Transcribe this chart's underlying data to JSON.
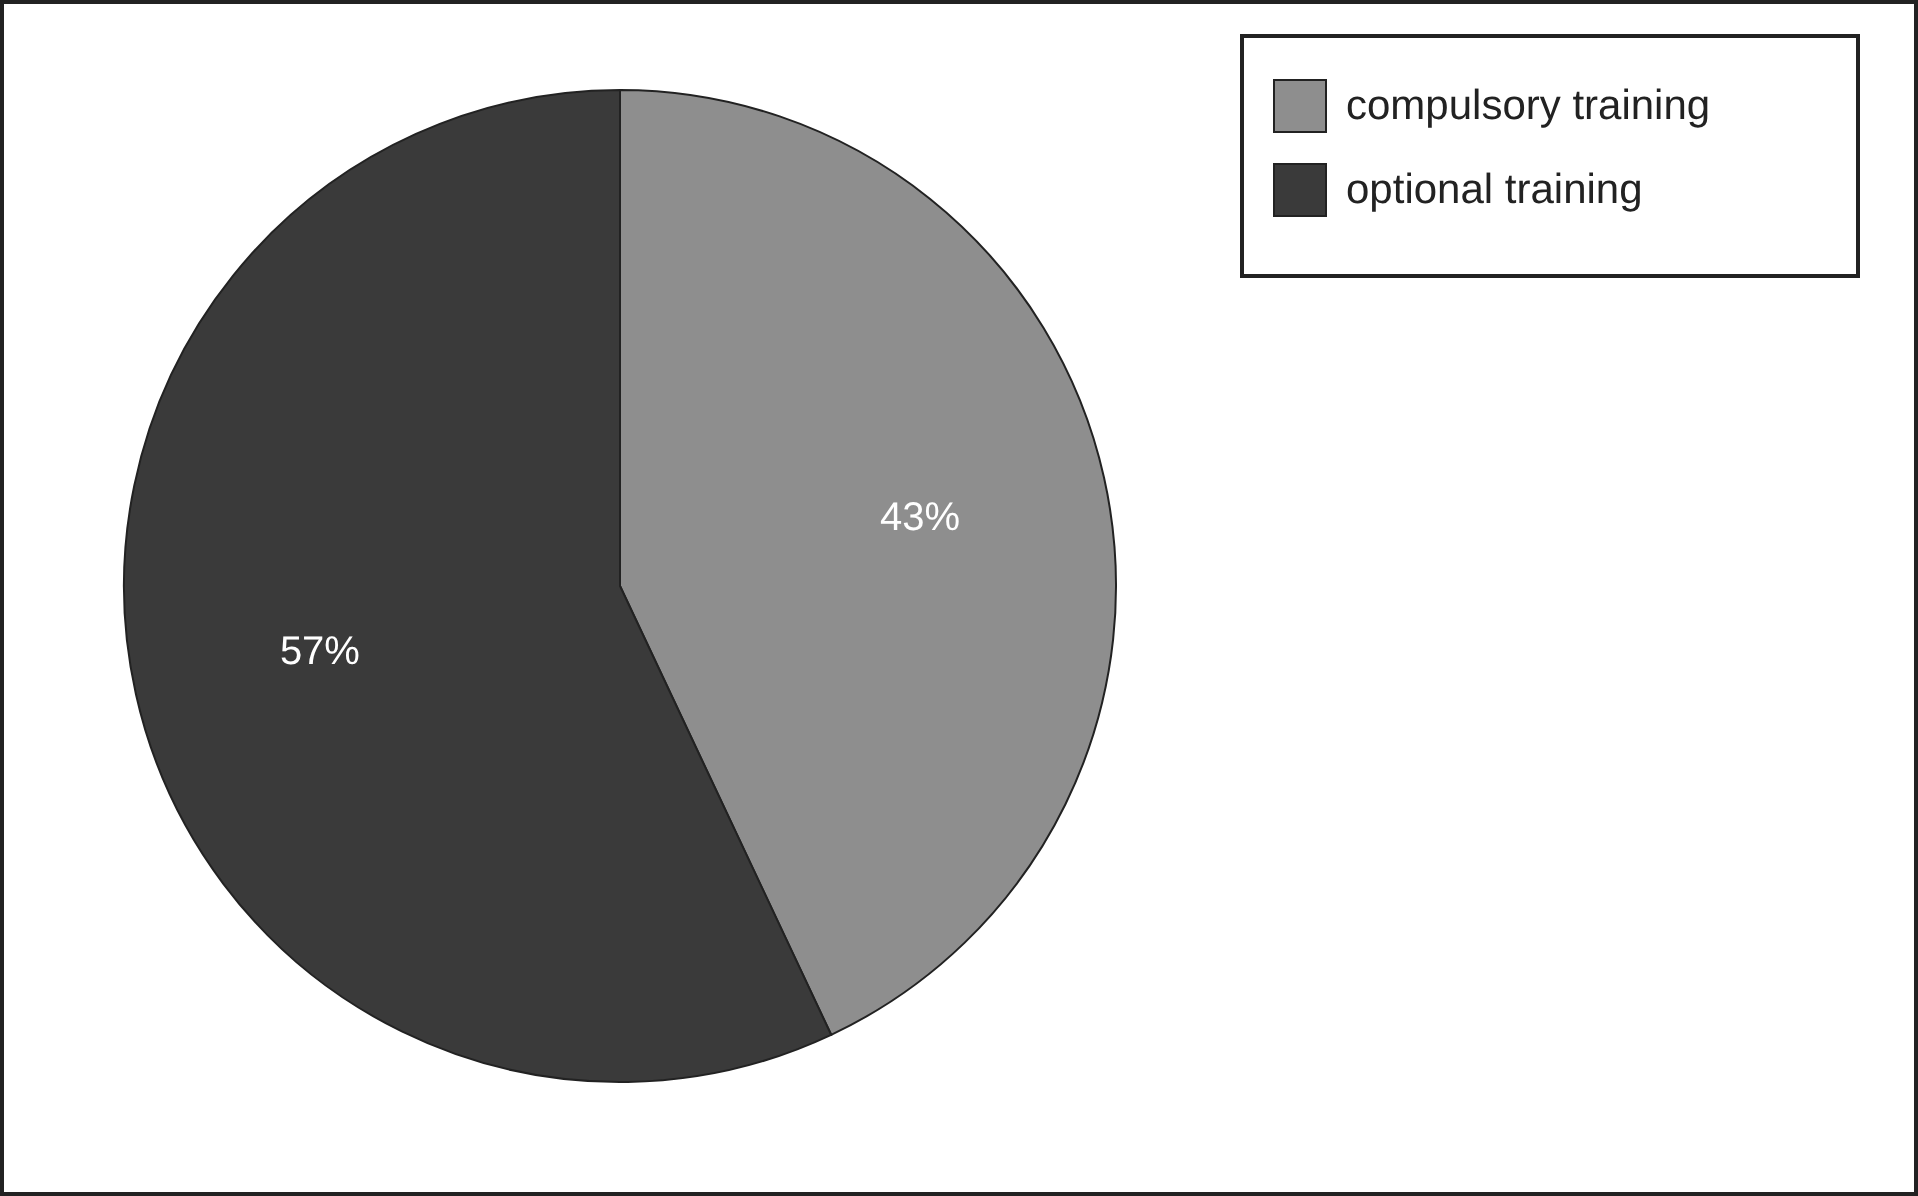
{
  "chart_data": {
    "type": "pie",
    "categories": [
      "compulsory training",
      "optional training"
    ],
    "values": [
      43,
      57
    ],
    "value_labels": [
      "43%",
      "57%"
    ],
    "colors": [
      "#8e8e8e",
      "#3a3a3a"
    ],
    "legend": "top right"
  }
}
